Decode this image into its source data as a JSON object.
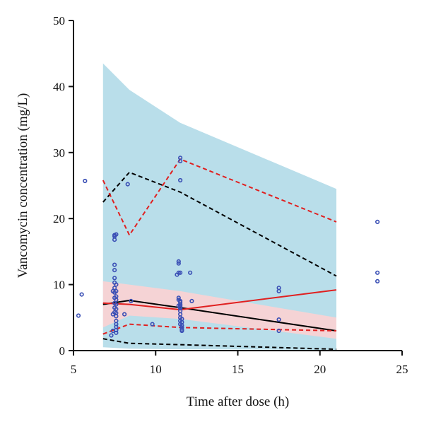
{
  "chart_data": {
    "type": "scatter",
    "title": "",
    "xlabel": "Time after dose (h)",
    "ylabel": "Vancomycin concentration (mg/L)",
    "xlim": [
      5,
      25
    ],
    "ylim": [
      0,
      50
    ],
    "xticks": [
      5,
      10,
      15,
      20,
      25
    ],
    "yticks": [
      0,
      10,
      20,
      30,
      40,
      50
    ],
    "grid": false,
    "legend": "none",
    "bands": [
      {
        "color": "#add8e6",
        "x": [
          6.8,
          8.4,
          11.5,
          21
        ],
        "lower": [
          0.5,
          0.3,
          0.2,
          0.1
        ],
        "upper": [
          43.5,
          39.5,
          34.5,
          24.5
        ]
      },
      {
        "color": "#ffd1d1",
        "x": [
          6.8,
          8.4,
          11.5,
          21
        ],
        "lower": [
          3.5,
          5.3,
          4.8,
          1.8
        ],
        "upper": [
          10.5,
          10.0,
          9.0,
          5.0
        ]
      }
    ],
    "lines": [
      {
        "color": "#000000",
        "dash": "dashed",
        "x": [
          6.8,
          8.4,
          11.5,
          21
        ],
        "y": [
          22.5,
          27.0,
          24.0,
          11.3
        ]
      },
      {
        "color": "#000000",
        "dash": "solid",
        "x": [
          6.8,
          8.4,
          11.5,
          21
        ],
        "y": [
          7.0,
          7.6,
          6.5,
          3.0
        ]
      },
      {
        "color": "#000000",
        "dash": "dashed",
        "x": [
          6.8,
          8.4,
          11.5,
          21
        ],
        "y": [
          1.8,
          1.1,
          0.9,
          0.2
        ]
      },
      {
        "color": "#e02020",
        "dash": "dashed",
        "x": [
          6.8,
          8.4,
          11.5,
          21
        ],
        "y": [
          25.8,
          17.5,
          29.0,
          19.5
        ]
      },
      {
        "color": "#e02020",
        "dash": "solid",
        "x": [
          6.8,
          8.4,
          11.5,
          21
        ],
        "y": [
          7.2,
          7.0,
          6.2,
          9.2
        ]
      },
      {
        "color": "#e02020",
        "dash": "dashed",
        "x": [
          6.8,
          8.4,
          11.5,
          21
        ],
        "y": [
          2.5,
          4.0,
          3.5,
          3.0
        ]
      }
    ],
    "points": {
      "color": "#3a4fb5",
      "x": [
        5.3,
        5.5,
        5.7,
        7.3,
        7.4,
        7.4,
        7.4,
        7.5,
        7.5,
        7.5,
        7.5,
        7.5,
        7.5,
        7.5,
        7.5,
        7.5,
        7.5,
        7.5,
        7.5,
        7.5,
        7.6,
        7.6,
        7.6,
        7.6,
        7.6,
        7.6,
        7.6,
        7.6,
        7.6,
        7.6,
        7.6,
        7.6,
        7.6,
        7.6,
        8.1,
        8.3,
        8.5,
        9.8,
        11.3,
        11.4,
        11.4,
        11.4,
        11.4,
        11.4,
        11.4,
        11.5,
        11.5,
        11.5,
        11.5,
        11.5,
        11.5,
        11.5,
        11.5,
        11.5,
        11.5,
        11.5,
        11.5,
        11.5,
        11.5,
        11.5,
        11.6,
        11.6,
        11.6,
        11.6,
        11.6,
        11.6,
        12.1,
        12.2,
        17.5,
        17.5,
        17.5,
        17.5,
        23.5,
        23.5,
        23.5
      ],
      "y": [
        5.3,
        8.5,
        25.7,
        2.3,
        3.0,
        5.5,
        9.0,
        17.5,
        17.3,
        16.8,
        13.0,
        12.2,
        11.0,
        10.3,
        9.5,
        8.8,
        8.0,
        7.2,
        6.5,
        5.8,
        17.6,
        10.0,
        9.0,
        8.2,
        7.7,
        7.0,
        6.3,
        5.7,
        5.2,
        4.5,
        4.0,
        3.6,
        3.1,
        2.7,
        5.5,
        25.2,
        7.5,
        4.0,
        11.5,
        13.5,
        13.2,
        11.8,
        8.0,
        7.7,
        6.8,
        29.2,
        28.7,
        25.8,
        11.8,
        7.5,
        7.3,
        7.0,
        6.8,
        6.6,
        6.4,
        6.0,
        5.5,
        5.0,
        4.5,
        4.0,
        3.5,
        3.2,
        3.0,
        3.8,
        4.3,
        4.8,
        11.8,
        7.5,
        9.5,
        9.0,
        4.7,
        3.0,
        19.5,
        11.8,
        10.5
      ]
    }
  }
}
